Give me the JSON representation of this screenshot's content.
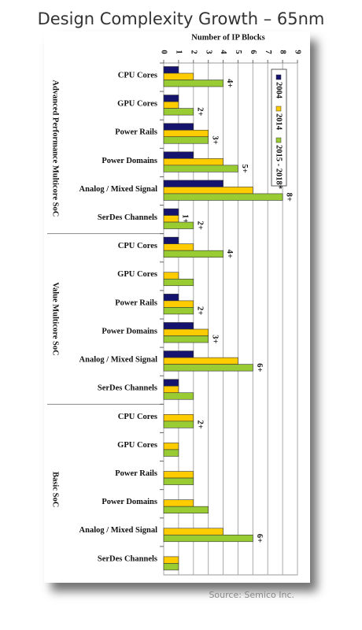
{
  "chart_data": {
    "type": "bar",
    "orientation": "horizontal",
    "title": "Design Complexity Growth – 65nm",
    "x_label": "Number of IP Blocks",
    "source": "Source: Semico Inc.",
    "groups": [
      "Advanced Performance Multicore SoC",
      "Value Multicore SoC",
      "Basic SoC"
    ],
    "categories": [
      "CPU Cores",
      "GPU Cores",
      "Power Rails",
      "Power Domains",
      "Analog / Mixed Signal",
      "SerDes Channels",
      "CPU Cores",
      "GPU Cores",
      "Power Rails",
      "Power Domains",
      "Analog / Mixed Signal",
      "SerDes Channels",
      "CPU Cores",
      "GPU Cores",
      "Power Rails",
      "Power Domains",
      "Analog / Mixed Signal",
      "SerDes Channels"
    ],
    "series": [
      {
        "name": "2004",
        "color": "#14146e",
        "values": [
          1,
          1,
          2,
          2,
          4,
          1,
          1,
          0,
          1,
          2,
          2,
          1,
          0,
          0,
          0,
          0,
          0,
          0
        ]
      },
      {
        "name": "2014",
        "color": "#ffcc00",
        "values": [
          2,
          1,
          3,
          4,
          6,
          1,
          2,
          1,
          2,
          3,
          5,
          1,
          2,
          1,
          2,
          2,
          4,
          1
        ],
        "value_labels": [
          null,
          null,
          null,
          null,
          null,
          "1+",
          null,
          null,
          null,
          null,
          null,
          null,
          null,
          null,
          null,
          null,
          null,
          null
        ]
      },
      {
        "name": "2015 - 2018*",
        "color": "#99cc33",
        "values": [
          4,
          2,
          3,
          5,
          8,
          2,
          4,
          2,
          2,
          3,
          6,
          2,
          2,
          1,
          2,
          3,
          6,
          1
        ],
        "value_labels": [
          "4+",
          "2+",
          "3+",
          "5+",
          "8+",
          "2+",
          "4+",
          null,
          "2+",
          "3+",
          "6+",
          null,
          "2+",
          null,
          null,
          null,
          "6+",
          null
        ]
      }
    ],
    "xlim": [
      0,
      9
    ],
    "xticks": [
      0,
      1,
      2,
      3,
      4,
      5,
      6,
      7,
      8,
      9
    ],
    "grid": true
  }
}
